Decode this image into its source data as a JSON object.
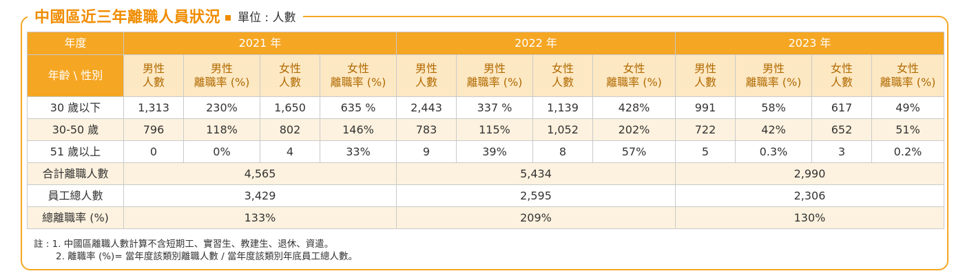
{
  "title": "中國區近三年離職人員狀況",
  "unit": "單位 : 人數",
  "header": {
    "year_label": "年度",
    "years": [
      "2021 年",
      "2022 年",
      "2023 年"
    ],
    "row_label": "年齡 \\ 性別",
    "sub": [
      {
        "l1": "男性",
        "l2": "人數"
      },
      {
        "l1": "男性",
        "l2": "離職率 (%)"
      },
      {
        "l1": "女性",
        "l2": "人數"
      },
      {
        "l1": "女性",
        "l2": "離職率 (%)"
      }
    ]
  },
  "rows": [
    {
      "label": "30 歲以下",
      "values": [
        "1,313",
        "230%",
        "1,650",
        "635 %",
        "2,443",
        "337 %",
        "1,139",
        "428%",
        "991",
        "58%",
        "617",
        "49%"
      ]
    },
    {
      "label": "30-50 歲",
      "values": [
        "796",
        "118%",
        "802",
        "146%",
        "783",
        "115%",
        "1,052",
        "202%",
        "722",
        "42%",
        "652",
        "51%"
      ]
    },
    {
      "label": "51 歲以上",
      "values": [
        "0",
        "0%",
        "4",
        "33%",
        "9",
        "39%",
        "8",
        "57%",
        "5",
        "0.3%",
        "3",
        "0.2%"
      ]
    }
  ],
  "summary": [
    {
      "label": "合計離職人數",
      "values": [
        "4,565",
        "5,434",
        "2,990"
      ]
    },
    {
      "label": "員工總人數",
      "values": [
        "3,429",
        "2,595",
        "2,306"
      ]
    },
    {
      "label": "總離職率 (%)",
      "values": [
        "133%",
        "209%",
        "130%"
      ]
    }
  ],
  "notes": [
    "註 : 1. 中國區離職人數計算不含短期工、實習生、教建生、退休、資遣。",
    "2. 離職率 (%)= 當年度該類別離職人數 / 當年度該類別年底員工總人數。"
  ],
  "colors": {
    "accent": "#f5a623",
    "title": "#f08c00",
    "light": "#fde8c4",
    "alt_row": "#fdf2df"
  }
}
